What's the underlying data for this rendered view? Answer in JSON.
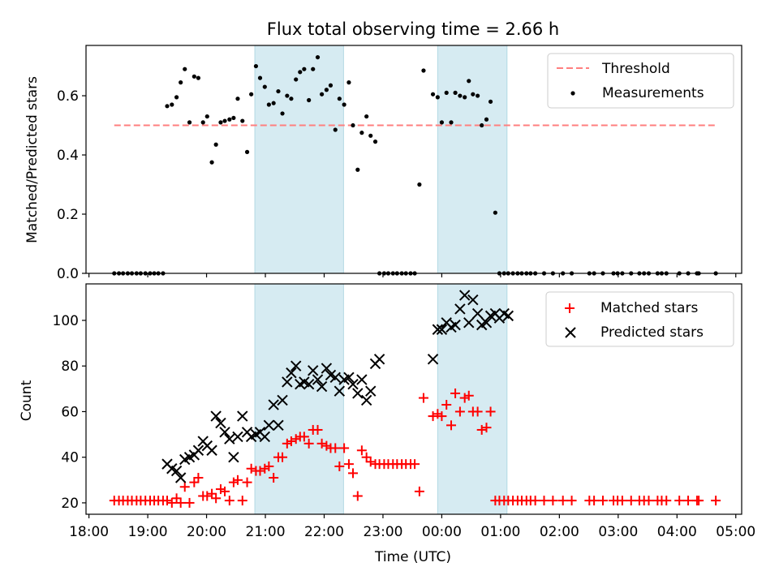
{
  "chart_data": [
    {
      "type": "scatter",
      "title": "Flux total observing time = 2.66 h",
      "xlabel": "",
      "ylabel": "Matched/Predicted stars",
      "xlim": [
        17.95,
        29.1
      ],
      "ylim": [
        0,
        0.77
      ],
      "yticks": [
        0.0,
        0.2,
        0.4,
        0.6
      ],
      "ytick_labels": [
        "0.0",
        "0.2",
        "0.4",
        "0.6"
      ],
      "legend": {
        "placement": "top-right",
        "entries": [
          "Threshold",
          "Measurements"
        ]
      },
      "shaded_spans": [
        [
          20.82,
          22.33
        ],
        [
          23.93,
          25.11
        ]
      ],
      "threshold": {
        "name": "Threshold",
        "y": 0.5,
        "x": [
          18.43,
          28.66
        ],
        "color": "#ff7f7f"
      },
      "series": [
        {
          "name": "Measurements",
          "color": "#000000",
          "x": [
            18.43,
            18.51,
            18.58,
            18.66,
            18.73,
            18.81,
            18.88,
            18.96,
            19.04,
            19.11,
            19.18,
            19.26,
            19.33,
            19.41,
            19.49,
            19.56,
            19.63,
            19.71,
            19.79,
            19.86,
            19.94,
            20.01,
            20.09,
            20.16,
            20.24,
            20.31,
            20.39,
            20.46,
            20.53,
            20.61,
            20.69,
            20.76,
            20.84,
            20.91,
            20.99,
            21.06,
            21.14,
            21.22,
            21.29,
            21.37,
            21.44,
            21.52,
            21.59,
            21.66,
            21.74,
            21.81,
            21.89,
            21.96,
            22.04,
            22.11,
            22.19,
            22.26,
            22.34,
            22.42,
            22.49,
            22.57,
            22.64,
            22.72,
            22.79,
            22.87,
            22.94,
            23.02,
            23.09,
            23.17,
            23.24,
            23.32,
            23.39,
            23.47,
            23.54,
            23.62,
            23.69,
            23.85,
            23.93,
            24.0,
            24.08,
            24.16,
            24.23,
            24.31,
            24.39,
            24.46,
            24.53,
            24.61,
            24.68,
            24.76,
            24.83,
            24.91,
            24.98,
            25.06,
            25.13,
            25.21,
            25.29,
            25.36,
            25.44,
            25.51,
            25.59,
            25.74,
            25.89,
            26.06,
            26.21,
            26.51,
            26.59,
            26.74,
            26.92,
            26.99,
            27.07,
            27.22,
            27.36,
            27.44,
            27.52,
            27.67,
            27.74,
            27.82,
            28.04,
            28.19,
            28.34,
            28.37,
            28.66
          ],
          "y": [
            0,
            0,
            0,
            0,
            0,
            0,
            0,
            0,
            0,
            0,
            0,
            0,
            0.565,
            0.57,
            0.595,
            0.645,
            0.69,
            0.51,
            0.665,
            0.66,
            0.51,
            0.53,
            0.375,
            0.435,
            0.51,
            0.515,
            0.52,
            0.525,
            0.59,
            0.515,
            0.41,
            0.605,
            0.7,
            0.66,
            0.63,
            0.57,
            0.575,
            0.615,
            0.54,
            0.6,
            0.59,
            0.655,
            0.68,
            0.69,
            0.585,
            0.69,
            0.73,
            0.605,
            0.62,
            0.635,
            0.485,
            0.59,
            0.57,
            0.645,
            0.5,
            0.35,
            0.475,
            0.53,
            0.465,
            0.445,
            0,
            0,
            0,
            0,
            0,
            0,
            0,
            0,
            0,
            0.3,
            0.685,
            0.605,
            0.595,
            0.51,
            0.61,
            0.51,
            0.61,
            0.6,
            0.595,
            0.65,
            0.605,
            0.6,
            0.5,
            0.52,
            0.58,
            0.205,
            0,
            0,
            0,
            0,
            0,
            0,
            0,
            0,
            0,
            0,
            0,
            0,
            0,
            0,
            0,
            0,
            0,
            0,
            0,
            0,
            0,
            0,
            0,
            0,
            0,
            0,
            0,
            0,
            0,
            0,
            0
          ]
        }
      ]
    },
    {
      "type": "scatter",
      "title": "",
      "xlabel": "Time (UTC)",
      "ylabel": "Count",
      "xlim": [
        17.95,
        29.1
      ],
      "ylim": [
        15,
        116
      ],
      "yticks": [
        20,
        40,
        60,
        80,
        100
      ],
      "ytick_labels": [
        "20",
        "40",
        "60",
        "80",
        "100"
      ],
      "xticks": [
        18,
        19,
        20,
        21,
        22,
        23,
        24,
        25,
        26,
        27,
        28,
        29
      ],
      "xtick_labels": [
        "18:00",
        "19:00",
        "20:00",
        "21:00",
        "22:00",
        "23:00",
        "00:00",
        "01:00",
        "02:00",
        "03:00",
        "04:00",
        "05:00"
      ],
      "legend": {
        "placement": "top-right",
        "entries": [
          "Matched stars",
          "Predicted stars"
        ]
      },
      "shaded_spans": [
        [
          20.82,
          22.33
        ],
        [
          23.93,
          25.11
        ]
      ],
      "series": [
        {
          "name": "Matched stars",
          "marker": "+",
          "color": "#ff0000",
          "x": [
            18.43,
            18.51,
            18.58,
            18.66,
            18.73,
            18.81,
            18.88,
            18.96,
            19.04,
            19.11,
            19.18,
            19.26,
            19.33,
            19.41,
            19.49,
            19.56,
            19.63,
            19.71,
            19.79,
            19.86,
            19.94,
            20.01,
            20.09,
            20.16,
            20.24,
            20.31,
            20.39,
            20.46,
            20.53,
            20.61,
            20.69,
            20.76,
            20.84,
            20.91,
            20.99,
            21.06,
            21.14,
            21.22,
            21.29,
            21.37,
            21.44,
            21.52,
            21.59,
            21.66,
            21.74,
            21.81,
            21.89,
            21.96,
            22.04,
            22.11,
            22.19,
            22.26,
            22.34,
            22.42,
            22.49,
            22.57,
            22.64,
            22.72,
            22.79,
            22.87,
            22.94,
            23.02,
            23.09,
            23.17,
            23.24,
            23.32,
            23.39,
            23.47,
            23.54,
            23.62,
            23.69,
            23.85,
            23.93,
            24.0,
            24.08,
            24.16,
            24.23,
            24.31,
            24.39,
            24.46,
            24.53,
            24.61,
            24.68,
            24.76,
            24.83,
            24.91,
            24.98,
            25.06,
            25.13,
            25.21,
            25.29,
            25.36,
            25.44,
            25.51,
            25.59,
            25.74,
            25.89,
            26.06,
            26.21,
            26.51,
            26.59,
            26.74,
            26.92,
            26.99,
            27.07,
            27.22,
            27.36,
            27.44,
            27.52,
            27.67,
            27.74,
            27.82,
            28.04,
            28.19,
            28.34,
            28.37,
            28.66
          ],
          "y": [
            21,
            21,
            21,
            21,
            21,
            21,
            21,
            21,
            21,
            21,
            21,
            21,
            21,
            20,
            22,
            20,
            27,
            20,
            29,
            31,
            23,
            23,
            24,
            22,
            26,
            25,
            21,
            29,
            30,
            21,
            29,
            35,
            34,
            34,
            35,
            36,
            31,
            40,
            40,
            46,
            47,
            48,
            49,
            49,
            46,
            52,
            52,
            46,
            45,
            44,
            44,
            36,
            44,
            37,
            33,
            23,
            43,
            40,
            38,
            37,
            37,
            37,
            37,
            37,
            37,
            37,
            37,
            37,
            37,
            25,
            66,
            58,
            59,
            58,
            63,
            54,
            68,
            60,
            66,
            67,
            60,
            60,
            52,
            53,
            60,
            21,
            21,
            21,
            21,
            21,
            21,
            21,
            21,
            21,
            21,
            21,
            21,
            21,
            21,
            21,
            21,
            21,
            21,
            21,
            21,
            21,
            21,
            21,
            21,
            21,
            21,
            21,
            21,
            21,
            21,
            21,
            21
          ]
        },
        {
          "name": "Predicted stars",
          "marker": "x",
          "color": "#000000",
          "x": [
            19.33,
            19.41,
            19.49,
            19.56,
            19.63,
            19.71,
            19.79,
            19.86,
            19.94,
            20.01,
            20.09,
            20.16,
            20.24,
            20.31,
            20.39,
            20.46,
            20.53,
            20.61,
            20.69,
            20.76,
            20.84,
            20.91,
            20.99,
            21.06,
            21.14,
            21.22,
            21.29,
            21.37,
            21.44,
            21.52,
            21.59,
            21.66,
            21.74,
            21.81,
            21.89,
            21.96,
            22.04,
            22.11,
            22.19,
            22.26,
            22.34,
            22.42,
            22.49,
            22.57,
            22.64,
            22.72,
            22.79,
            22.87,
            22.94,
            23.85,
            23.93,
            24.0,
            24.08,
            24.16,
            24.23,
            24.31,
            24.39,
            24.46,
            24.53,
            24.61,
            24.68,
            24.76,
            24.83,
            24.91,
            24.98,
            25.06,
            25.13
          ],
          "y": [
            37,
            35,
            34,
            31,
            39,
            40,
            41,
            43,
            47,
            45,
            43,
            58,
            55,
            51,
            48,
            40,
            49,
            58,
            51,
            49,
            50,
            51,
            49,
            54,
            63,
            54,
            65,
            73,
            77,
            80,
            72,
            73,
            72,
            78,
            74,
            71,
            79,
            76,
            75,
            69,
            74,
            75,
            72,
            68,
            74,
            65,
            69,
            81,
            83,
            83,
            96,
            96,
            99,
            97,
            98,
            105,
            111,
            99,
            109,
            103,
            98,
            99,
            102,
            103,
            101,
            103,
            102
          ]
        }
      ]
    }
  ]
}
